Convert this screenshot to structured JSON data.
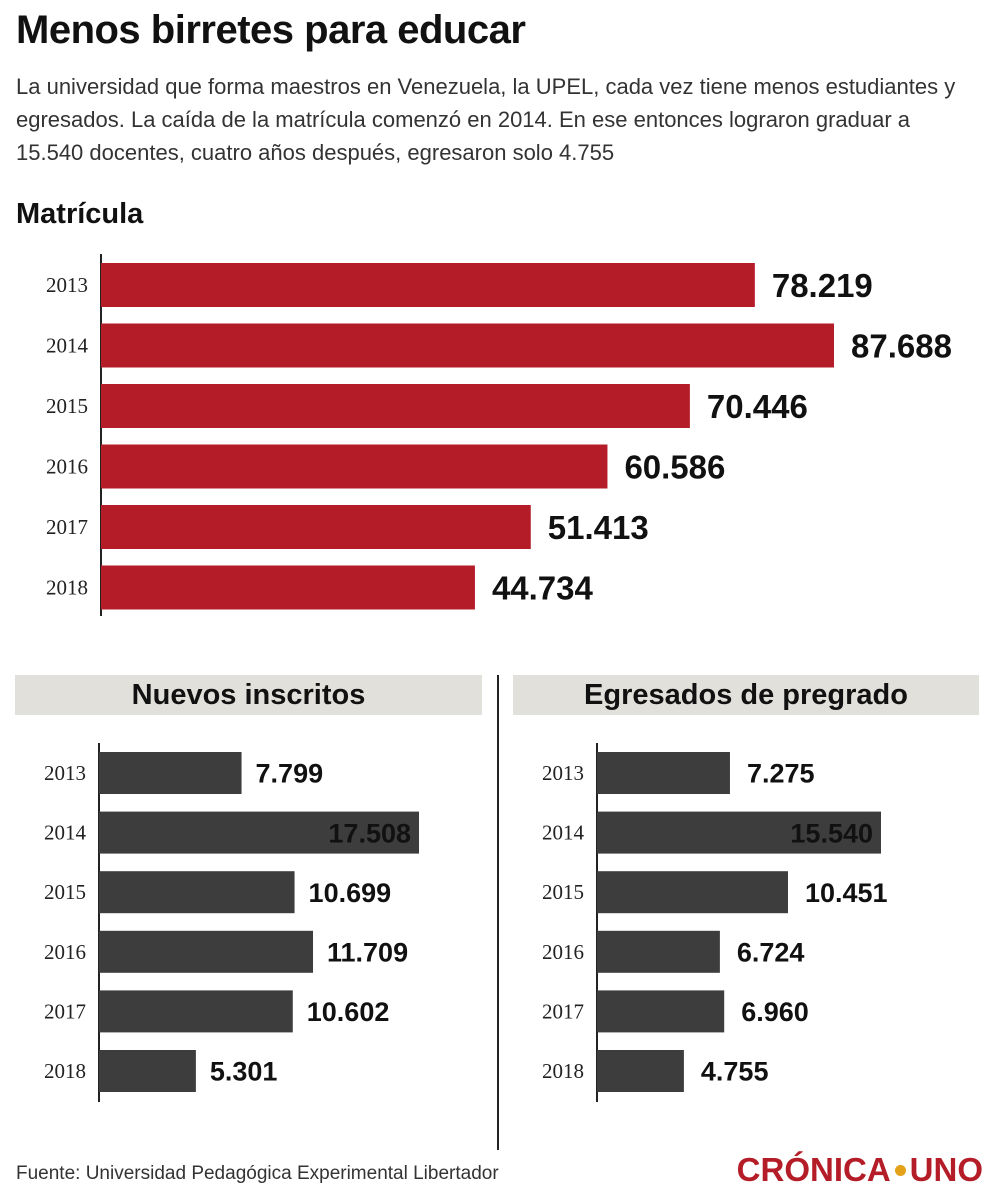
{
  "title": "Menos birretes para educar",
  "subtitle": "La universidad que forma maestros en Venezuela, la UPEL, cada vez tiene menos estudiantes y egresados. La caída de la matrícula comenzó en 2014. En ese entonces lograron graduar a 15.540 docentes, cuatro años después, egresaron solo 4.755",
  "source": "Fuente: Universidad Pedagógica Experimental Libertador",
  "brand": {
    "part1": "CRÓNICA",
    "part2": "UNO"
  },
  "colors": {
    "matricula_bar": "#b41c27",
    "small_bar": "#3d3d3d",
    "header_bg": "#e2e0da",
    "brand_red": "#b41c27",
    "brand_dot": "#e3a21a"
  },
  "chart_data": [
    {
      "id": "matricula",
      "type": "bar",
      "orientation": "horizontal",
      "title": "Matrícula",
      "categories": [
        "2013",
        "2014",
        "2015",
        "2016",
        "2017",
        "2018"
      ],
      "values": [
        78219,
        87688,
        70446,
        60586,
        51413,
        44734
      ],
      "labels": [
        "78.219",
        "87.688",
        "70.446",
        "60.586",
        "51.413",
        "44.734"
      ],
      "color": "#b41c27"
    },
    {
      "id": "inscritos",
      "type": "bar",
      "orientation": "horizontal",
      "title": "Nuevos inscritos",
      "categories": [
        "2013",
        "2014",
        "2015",
        "2016",
        "2017",
        "2018"
      ],
      "values": [
        7799,
        17508,
        10699,
        11709,
        10602,
        5301
      ],
      "labels": [
        "7.799",
        "17.508",
        "10.699",
        "11.709",
        "10.602",
        "5.301"
      ],
      "color": "#3d3d3d",
      "inside_label_categories": [
        "2014"
      ]
    },
    {
      "id": "egresados",
      "type": "bar",
      "orientation": "horizontal",
      "title": "Egresados de pregrado",
      "categories": [
        "2013",
        "2014",
        "2015",
        "2016",
        "2017",
        "2018"
      ],
      "values": [
        7275,
        15540,
        10451,
        6724,
        6960,
        4755
      ],
      "labels": [
        "7.275",
        "15.540",
        "10.451",
        "6.724",
        "6.960",
        "4.755"
      ],
      "color": "#3d3d3d",
      "inside_label_categories": [
        "2014"
      ]
    }
  ]
}
